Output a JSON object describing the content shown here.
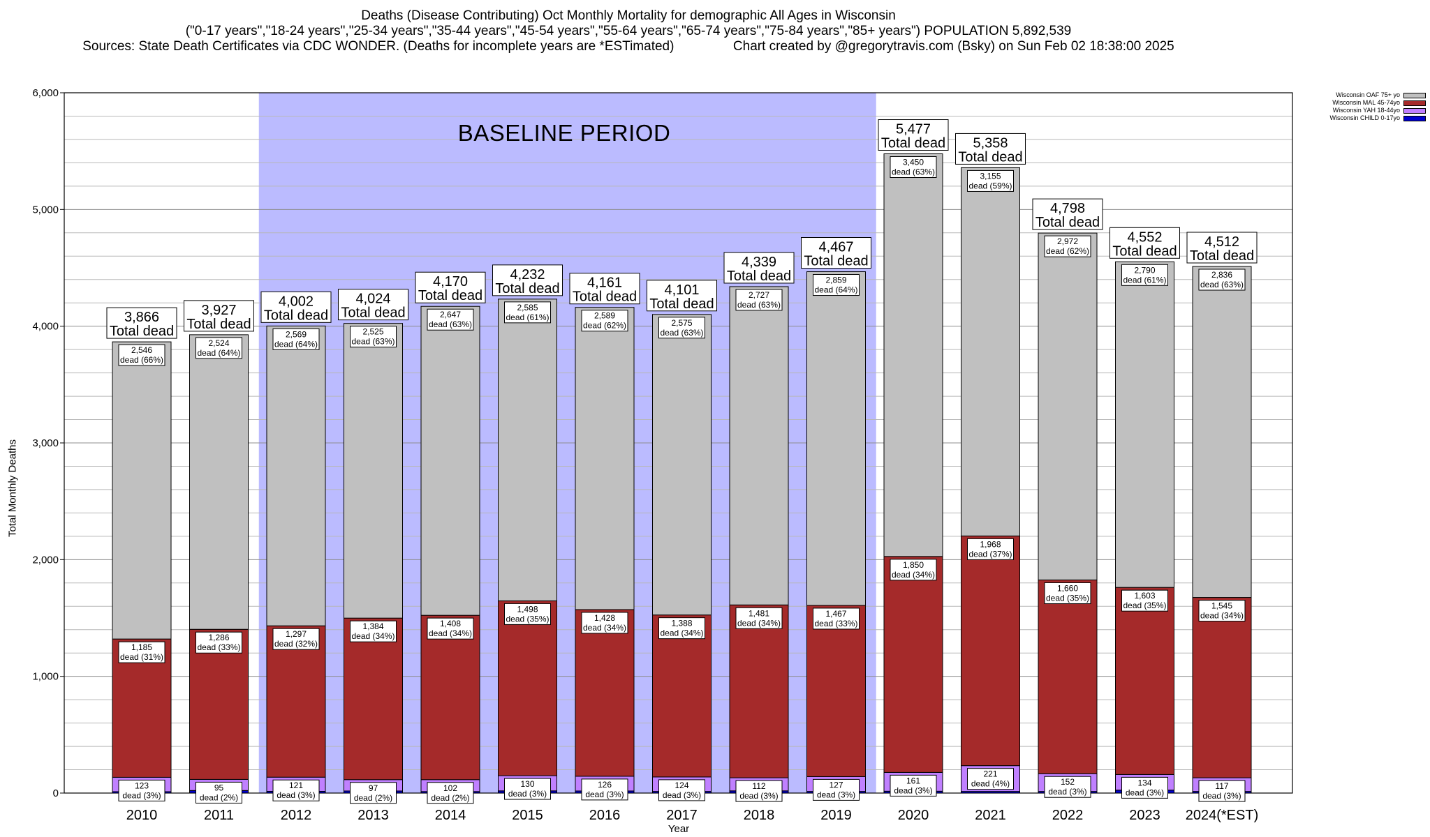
{
  "header": {
    "title": "Deaths (Disease Contributing) Oct Monthly Mortality for demographic All Ages in Wisconsin",
    "subtitle": "(\"0-17 years\",\"18-24 years\",\"25-34 years\",\"35-44 years\",\"45-54 years\",\"55-64 years\",\"65-74 years\",\"75-84 years\",\"85+ years\") POPULATION 5,892,539",
    "sources": "Sources: State Death Certificates via CDC WONDER. (Deaths for incomplete years are *ESTimated)",
    "credit": "Chart created by @gregorytravis.com (Bsky) on Sun Feb 02 18:38:00 2025"
  },
  "legend": [
    {
      "label": "Wisconsin OAF 75+ yo",
      "color": "#c0c0c0"
    },
    {
      "label": "Wisconsin MAL 45-74yo",
      "color": "#a52a2a"
    },
    {
      "label": "Wisconsin YAH 18-44yo",
      "color": "#c080ff"
    },
    {
      "label": "Wisconsin CHILD 0-17yo",
      "color": "#0000cd"
    }
  ],
  "baseline_label": "BASELINE PERIOD",
  "total_suffix": "Total dead",
  "dead_word": "dead",
  "chart_data": {
    "type": "bar",
    "stacked": true,
    "categories": [
      "2010",
      "2011",
      "2012",
      "2013",
      "2014",
      "2015",
      "2016",
      "2017",
      "2018",
      "2019",
      "2020",
      "2021",
      "2022",
      "2023",
      "2024(*EST)"
    ],
    "xlabel": "Year",
    "ylabel": "Total Monthly Deaths",
    "ylim": [
      0,
      6000
    ],
    "yticks": [
      0,
      1000,
      2000,
      3000,
      4000,
      5000,
      6000
    ],
    "ytick_labels": [
      "0",
      "1,000",
      "2,000",
      "3,000",
      "4,000",
      "5,000",
      "6,000"
    ],
    "baseline_period": [
      "2012",
      "2019"
    ],
    "baseline_color": "#bbbbff",
    "totals": [
      3866,
      3927,
      4002,
      4024,
      4170,
      4232,
      4161,
      4101,
      4339,
      4467,
      5477,
      5358,
      4798,
      4552,
      4512
    ],
    "totals_labels": [
      "3,866",
      "3,927",
      "4,002",
      "4,024",
      "4,170",
      "4,232",
      "4,161",
      "4,101",
      "4,339",
      "4,467",
      "5,477",
      "5,358",
      "4,798",
      "4,552",
      "4,512"
    ],
    "series": [
      {
        "name": "Wisconsin OAF 75+ yo",
        "color": "#c0c0c0",
        "values": [
          2546,
          2524,
          2569,
          2525,
          2647,
          2585,
          2589,
          2575,
          2727,
          2859,
          3450,
          3155,
          2972,
          2790,
          2836
        ],
        "labels": [
          "2,546",
          "2,524",
          "2,569",
          "2,525",
          "2,647",
          "2,585",
          "2,589",
          "2,575",
          "2,727",
          "2,859",
          "3,450",
          "3,155",
          "2,972",
          "2,790",
          "2,836"
        ],
        "pct": [
          "(66%)",
          "(64%)",
          "(64%)",
          "(63%)",
          "(63%)",
          "(61%)",
          "(62%)",
          "(63%)",
          "(63%)",
          "(64%)",
          "(63%)",
          "(59%)",
          "(62%)",
          "(61%)",
          "(63%)"
        ]
      },
      {
        "name": "Wisconsin MAL 45-74yo",
        "color": "#a52a2a",
        "values": [
          1185,
          1286,
          1297,
          1384,
          1408,
          1498,
          1428,
          1388,
          1481,
          1467,
          1850,
          1968,
          1660,
          1603,
          1545
        ],
        "labels": [
          "1,185",
          "1,286",
          "1,297",
          "1,384",
          "1,408",
          "1,498",
          "1,428",
          "1,388",
          "1,481",
          "1,467",
          "1,850",
          "1,968",
          "1,660",
          "1,603",
          "1,545"
        ],
        "pct": [
          "(31%)",
          "(33%)",
          "(32%)",
          "(34%)",
          "(34%)",
          "(35%)",
          "(34%)",
          "(34%)",
          "(34%)",
          "(33%)",
          "(34%)",
          "(37%)",
          "(35%)",
          "(35%)",
          "(34%)"
        ]
      },
      {
        "name": "Wisconsin YAH 18-44yo",
        "color": "#c080ff",
        "values": [
          123,
          95,
          121,
          97,
          102,
          130,
          126,
          124,
          112,
          127,
          161,
          221,
          152,
          134,
          117
        ],
        "labels": [
          "123",
          "95",
          "121",
          "97",
          "102",
          "130",
          "126",
          "124",
          "112",
          "127",
          "161",
          "221",
          "152",
          "134",
          "117"
        ],
        "pct": [
          "(3%)",
          "(2%)",
          "(3%)",
          "(2%)",
          "(2%)",
          "(3%)",
          "(3%)",
          "(3%)",
          "(3%)",
          "(3%)",
          "(3%)",
          "(4%)",
          "(3%)",
          "(3%)",
          "(3%)"
        ]
      },
      {
        "name": "Wisconsin CHILD 0-17yo",
        "color": "#0000cd",
        "values": [
          12,
          22,
          15,
          18,
          13,
          19,
          18,
          14,
          19,
          14,
          16,
          14,
          14,
          25,
          14
        ]
      }
    ]
  }
}
